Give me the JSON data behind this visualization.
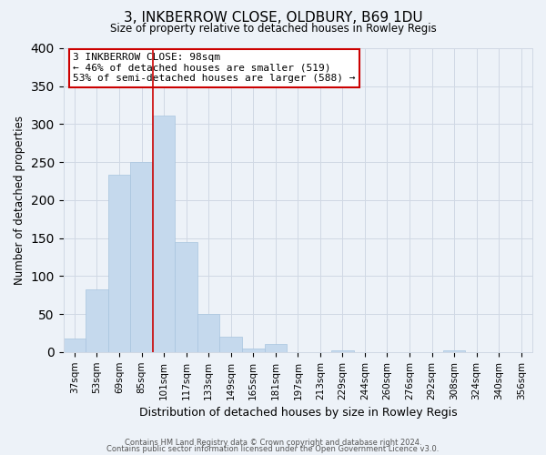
{
  "title": "3, INKBERROW CLOSE, OLDBURY, B69 1DU",
  "subtitle": "Size of property relative to detached houses in Rowley Regis",
  "xlabel": "Distribution of detached houses by size in Rowley Regis",
  "ylabel": "Number of detached properties",
  "bar_labels": [
    "37sqm",
    "53sqm",
    "69sqm",
    "85sqm",
    "101sqm",
    "117sqm",
    "133sqm",
    "149sqm",
    "165sqm",
    "181sqm",
    "197sqm",
    "213sqm",
    "229sqm",
    "244sqm",
    "260sqm",
    "276sqm",
    "292sqm",
    "308sqm",
    "324sqm",
    "340sqm",
    "356sqm"
  ],
  "bar_values": [
    18,
    83,
    233,
    250,
    311,
    145,
    50,
    20,
    5,
    10,
    0,
    0,
    2,
    0,
    0,
    0,
    0,
    2,
    0,
    0,
    0
  ],
  "bar_color": "#c5d9ed",
  "bar_edge_color": "#a8c4de",
  "grid_color": "#d0d8e4",
  "background_color": "#edf2f8",
  "plot_bg_color": "#edf2f8",
  "vline_color": "#cc0000",
  "annotation_title": "3 INKBERROW CLOSE: 98sqm",
  "annotation_line1": "← 46% of detached houses are smaller (519)",
  "annotation_line2": "53% of semi-detached houses are larger (588) →",
  "annotation_box_color": "#ffffff",
  "annotation_border_color": "#cc0000",
  "ylim": [
    0,
    400
  ],
  "yticks": [
    0,
    50,
    100,
    150,
    200,
    250,
    300,
    350,
    400
  ],
  "footer1": "Contains HM Land Registry data © Crown copyright and database right 2024.",
  "footer2": "Contains public sector information licensed under the Open Government Licence v3.0."
}
